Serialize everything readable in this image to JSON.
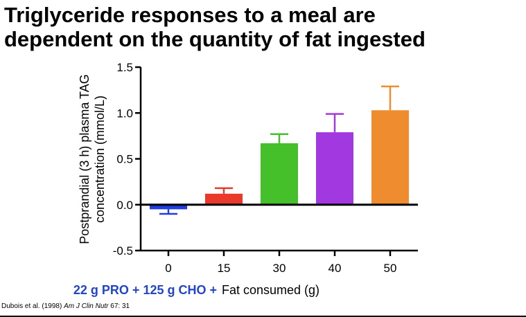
{
  "title": {
    "line1": "Triglyceride responses to a meal are",
    "line2": "dependent on the quantity of fat ingested"
  },
  "xlabel_prefix": "22 g PRO + 125 g CHO +",
  "xlabel_prefix_color": "#2244cc",
  "citation": {
    "authors": "Dubois et al. (1998) ",
    "journal": "Am J Clin Nutr",
    "volume": " 67: 31"
  },
  "chart_data": {
    "type": "bar",
    "title": "",
    "xlabel": "Fat consumed (g)",
    "ylabel_line1": "Postprandial (3 h) plasma TAG",
    "ylabel_line2": "concentration (mmol/L)",
    "ylim": [
      -0.5,
      1.5
    ],
    "yticks": [
      -0.5,
      0.0,
      0.5,
      1.0,
      1.5
    ],
    "ytick_labels": [
      "-0.5",
      "0.0",
      "0.5",
      "1.0",
      "1.5"
    ],
    "categories": [
      "0",
      "15",
      "30",
      "40",
      "50"
    ],
    "values": [
      -0.05,
      0.12,
      0.67,
      0.79,
      1.03
    ],
    "errors": [
      0.05,
      0.06,
      0.1,
      0.2,
      0.26
    ],
    "colors": [
      "#1f3de0",
      "#e8392a",
      "#46c02a",
      "#a238e0",
      "#f08c30"
    ]
  }
}
